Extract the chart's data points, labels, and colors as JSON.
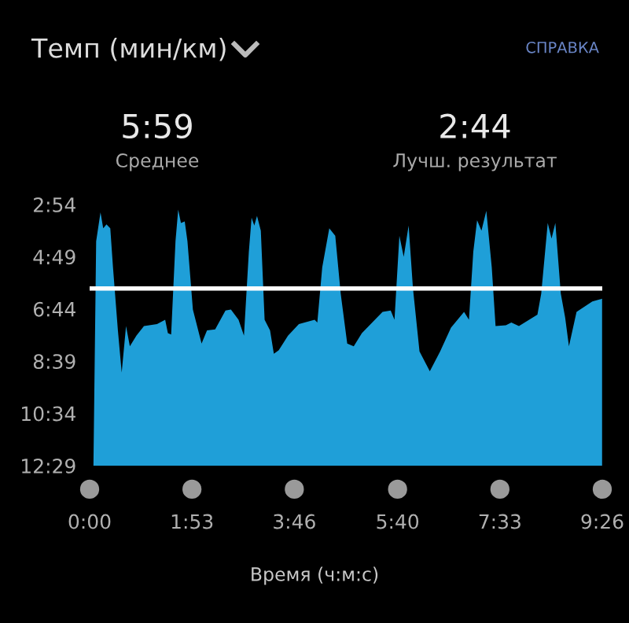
{
  "chart_data": {
    "type": "area",
    "title": "Темп (мин/км)",
    "xlabel": "Время (ч:м:с)",
    "annotations": [
      "СПРАВКА",
      "5:59",
      "Среднее",
      "2:44",
      "Лучш. результат"
    ],
    "x": [
      0.07,
      0.12,
      0.2,
      0.25,
      0.31,
      0.38,
      0.43,
      0.52,
      0.59,
      0.67,
      0.74,
      0.86,
      1.0,
      1.24,
      1.39,
      1.44,
      1.5,
      1.58,
      1.63,
      1.68,
      1.75,
      1.8,
      1.9,
      2.06,
      2.16,
      2.31,
      2.5,
      2.6,
      2.74,
      2.84,
      2.93,
      2.98,
      3.03,
      3.08,
      3.15,
      3.22,
      3.32,
      3.39,
      3.48,
      3.65,
      3.85,
      4.14,
      4.19,
      4.28,
      4.41,
      4.52,
      4.62,
      4.74,
      4.86,
      5.01,
      5.2,
      5.39,
      5.54,
      5.61,
      5.7,
      5.78,
      5.87,
      5.95,
      6.07,
      6.26,
      6.45,
      6.65,
      6.89,
      6.98,
      7.06,
      7.13,
      7.21,
      7.3,
      7.4,
      7.47,
      7.66,
      7.76,
      7.9,
      8.24,
      8.31,
      8.43,
      8.5,
      8.57,
      8.67,
      8.75,
      8.82,
      8.96,
      9.25,
      9.43,
      9.43
    ],
    "series": [
      {
        "color": "#1f9fd8",
        "values": [
          12.48,
          4.25,
          3.19,
          3.77,
          3.63,
          3.77,
          5.21,
          7.52,
          9.06,
          7.36,
          8.1,
          7.71,
          7.36,
          7.29,
          7.13,
          7.62,
          7.67,
          4.25,
          3.09,
          3.58,
          3.52,
          4.25,
          6.75,
          8.0,
          7.52,
          7.48,
          6.79,
          6.75,
          7.13,
          7.71,
          4.63,
          3.38,
          3.67,
          3.32,
          3.86,
          7.13,
          7.52,
          8.38,
          8.25,
          7.71,
          7.29,
          7.13,
          7.23,
          5.21,
          3.77,
          4.05,
          6.17,
          8.0,
          8.1,
          7.62,
          7.23,
          6.84,
          6.79,
          7.13,
          4.05,
          4.82,
          3.67,
          5.98,
          8.29,
          9.02,
          8.29,
          7.42,
          6.84,
          7.13,
          4.63,
          3.48,
          3.86,
          3.13,
          5.21,
          7.36,
          7.33,
          7.23,
          7.36,
          6.94,
          6.17,
          3.58,
          4.15,
          3.58,
          6.17,
          7.04,
          8.1,
          6.84,
          6.46,
          6.36,
          12.48
        ]
      }
    ],
    "xlim": [
      0,
      9.4333
    ],
    "xticks": [
      {
        "value": 0,
        "label": "0:00"
      },
      {
        "value": 1.8833,
        "label": "1:53"
      },
      {
        "value": 3.7667,
        "label": "3:46"
      },
      {
        "value": 5.6667,
        "label": "5:40"
      },
      {
        "value": 7.55,
        "label": "7:33"
      },
      {
        "value": 9.4333,
        "label": "9:26"
      }
    ],
    "ylim": [
      12.4833,
      2.9
    ],
    "yticks": [
      {
        "value": 2.9,
        "label": "2:54"
      },
      {
        "value": 4.8167,
        "label": "4:49"
      },
      {
        "value": 6.7333,
        "label": "6:44"
      },
      {
        "value": 8.65,
        "label": "8:39"
      },
      {
        "value": 10.5667,
        "label": "10:34"
      },
      {
        "value": 12.4833,
        "label": "12:29"
      }
    ],
    "ref_lines": [
      {
        "axis": "y",
        "value": 5.9833,
        "color": "#ffffff"
      }
    ]
  }
}
